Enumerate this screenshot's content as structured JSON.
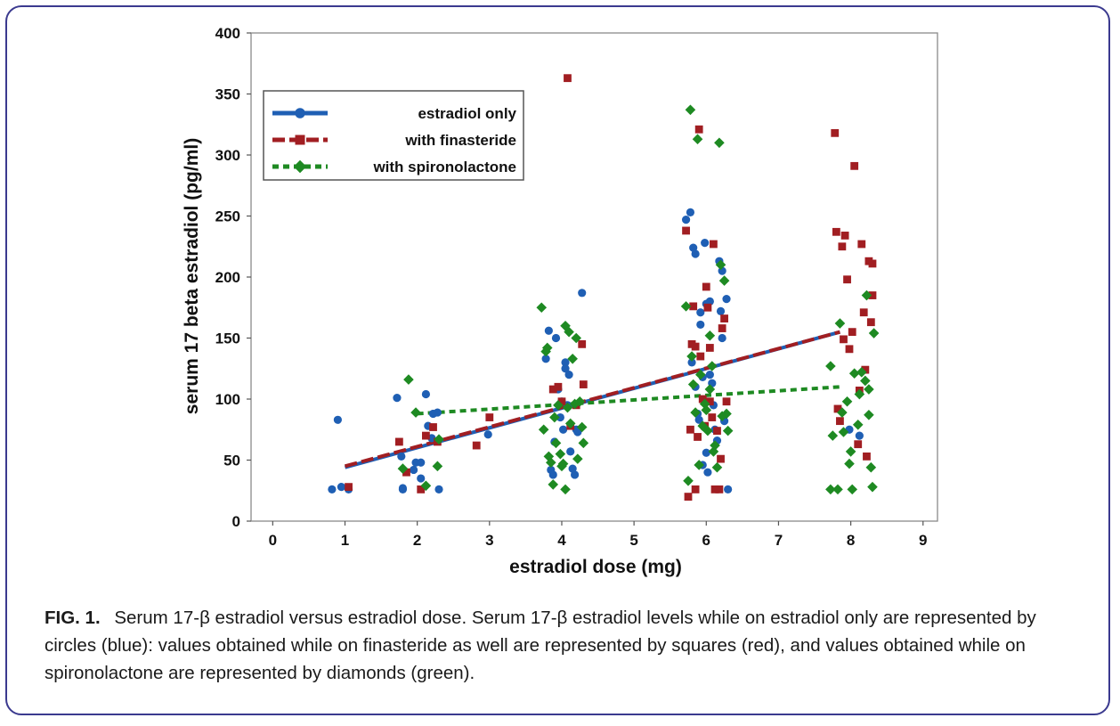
{
  "chart_data": {
    "type": "scatter",
    "xlabel": "estradiol dose (mg)",
    "ylabel": "serum 17 beta estradiol (pg/ml)",
    "xlim": [
      -0.3,
      9.2
    ],
    "ylim": [
      0,
      400
    ],
    "xticks": [
      0,
      1,
      2,
      3,
      4,
      5,
      6,
      7,
      8,
      9
    ],
    "yticks": [
      0,
      50,
      100,
      150,
      200,
      250,
      300,
      350,
      400
    ],
    "grid": false,
    "legend_position": "top-left",
    "series": [
      {
        "name": "estradiol only",
        "marker": "circle",
        "line_style": "solid",
        "color": "#1f5fb4",
        "fit_line": [
          [
            1.0,
            44
          ],
          [
            7.85,
            155
          ]
        ],
        "points": [
          [
            0.82,
            26
          ],
          [
            0.9,
            83
          ],
          [
            0.95,
            28
          ],
          [
            1.05,
            26
          ],
          [
            1.72,
            101
          ],
          [
            1.78,
            53
          ],
          [
            1.8,
            27
          ],
          [
            1.8,
            26
          ],
          [
            1.95,
            42
          ],
          [
            1.98,
            48
          ],
          [
            2.05,
            35
          ],
          [
            2.05,
            48
          ],
          [
            2.12,
            104
          ],
          [
            2.15,
            78
          ],
          [
            2.2,
            68
          ],
          [
            2.22,
            88
          ],
          [
            2.28,
            89
          ],
          [
            2.3,
            26
          ],
          [
            2.98,
            71
          ],
          [
            3.78,
            133
          ],
          [
            3.82,
            156
          ],
          [
            3.85,
            42
          ],
          [
            3.88,
            38
          ],
          [
            3.9,
            65
          ],
          [
            3.92,
            150
          ],
          [
            3.95,
            108
          ],
          [
            3.98,
            85
          ],
          [
            4.0,
            98
          ],
          [
            4.02,
            75
          ],
          [
            4.05,
            130
          ],
          [
            4.05,
            125
          ],
          [
            4.08,
            95
          ],
          [
            4.1,
            120
          ],
          [
            4.12,
            57
          ],
          [
            4.15,
            43
          ],
          [
            4.18,
            38
          ],
          [
            4.2,
            75
          ],
          [
            4.22,
            73
          ],
          [
            4.28,
            187
          ],
          [
            5.72,
            247
          ],
          [
            5.78,
            253
          ],
          [
            5.8,
            130
          ],
          [
            5.82,
            224
          ],
          [
            5.85,
            219
          ],
          [
            5.85,
            110
          ],
          [
            5.88,
            88
          ],
          [
            5.9,
            83
          ],
          [
            5.92,
            171
          ],
          [
            5.92,
            161
          ],
          [
            5.95,
            118
          ],
          [
            5.95,
            46
          ],
          [
            5.98,
            228
          ],
          [
            6.0,
            178
          ],
          [
            6.0,
            56
          ],
          [
            6.02,
            40
          ],
          [
            6.05,
            180
          ],
          [
            6.05,
            120
          ],
          [
            6.08,
            113
          ],
          [
            6.1,
            95
          ],
          [
            6.12,
            75
          ],
          [
            6.15,
            66
          ],
          [
            6.18,
            213
          ],
          [
            6.2,
            172
          ],
          [
            6.22,
            150
          ],
          [
            6.22,
            205
          ],
          [
            6.25,
            82
          ],
          [
            6.28,
            182
          ],
          [
            6.3,
            26
          ],
          [
            7.98,
            75
          ],
          [
            8.12,
            70
          ]
        ]
      },
      {
        "name": "with finasteride",
        "marker": "square",
        "line_style": "long-dash",
        "color": "#a11e22",
        "fit_line": [
          [
            1.0,
            45
          ],
          [
            7.85,
            155
          ]
        ],
        "points": [
          [
            1.05,
            28
          ],
          [
            1.75,
            65
          ],
          [
            1.85,
            40
          ],
          [
            2.05,
            26
          ],
          [
            2.12,
            70
          ],
          [
            2.22,
            77
          ],
          [
            2.28,
            65
          ],
          [
            2.82,
            62
          ],
          [
            3.0,
            85
          ],
          [
            3.88,
            108
          ],
          [
            3.95,
            110
          ],
          [
            4.0,
            98
          ],
          [
            4.08,
            363
          ],
          [
            4.12,
            78
          ],
          [
            4.2,
            95
          ],
          [
            4.28,
            145
          ],
          [
            4.3,
            112
          ],
          [
            5.72,
            238
          ],
          [
            5.75,
            20
          ],
          [
            5.78,
            75
          ],
          [
            5.8,
            145
          ],
          [
            5.82,
            176
          ],
          [
            5.85,
            143
          ],
          [
            5.85,
            26
          ],
          [
            5.88,
            69
          ],
          [
            5.9,
            321
          ],
          [
            5.92,
            135
          ],
          [
            5.95,
            100
          ],
          [
            5.98,
            78
          ],
          [
            6.0,
            192
          ],
          [
            6.02,
            175
          ],
          [
            6.05,
            142
          ],
          [
            6.05,
            98
          ],
          [
            6.08,
            85
          ],
          [
            6.1,
            227
          ],
          [
            6.12,
            26
          ],
          [
            6.15,
            74
          ],
          [
            6.18,
            26
          ],
          [
            6.2,
            51
          ],
          [
            6.22,
            158
          ],
          [
            6.25,
            166
          ],
          [
            6.28,
            98
          ],
          [
            7.78,
            318
          ],
          [
            7.8,
            237
          ],
          [
            7.82,
            92
          ],
          [
            7.85,
            82
          ],
          [
            7.88,
            225
          ],
          [
            7.9,
            149
          ],
          [
            7.92,
            234
          ],
          [
            7.95,
            198
          ],
          [
            7.98,
            141
          ],
          [
            8.02,
            155
          ],
          [
            8.05,
            291
          ],
          [
            8.1,
            63
          ],
          [
            8.12,
            107
          ],
          [
            8.15,
            227
          ],
          [
            8.18,
            171
          ],
          [
            8.2,
            124
          ],
          [
            8.22,
            53
          ],
          [
            8.25,
            213
          ],
          [
            8.28,
            163
          ],
          [
            8.3,
            211
          ],
          [
            8.3,
            185
          ]
        ]
      },
      {
        "name": "with spironolactone",
        "marker": "diamond",
        "line_style": "dashed",
        "color": "#1e8a22",
        "fit_line": [
          [
            2.0,
            88
          ],
          [
            7.85,
            110
          ]
        ],
        "points": [
          [
            1.8,
            43
          ],
          [
            1.88,
            116
          ],
          [
            1.98,
            89
          ],
          [
            2.12,
            29
          ],
          [
            2.28,
            45
          ],
          [
            2.3,
            67
          ],
          [
            3.72,
            175
          ],
          [
            3.75,
            75
          ],
          [
            3.78,
            139
          ],
          [
            3.8,
            142
          ],
          [
            3.82,
            53
          ],
          [
            3.85,
            48
          ],
          [
            3.88,
            30
          ],
          [
            3.9,
            85
          ],
          [
            3.92,
            64
          ],
          [
            3.95,
            95
          ],
          [
            3.98,
            55
          ],
          [
            4.0,
            45
          ],
          [
            4.02,
            47
          ],
          [
            4.05,
            160
          ],
          [
            4.05,
            26
          ],
          [
            4.08,
            93
          ],
          [
            4.1,
            155
          ],
          [
            4.12,
            80
          ],
          [
            4.15,
            133
          ],
          [
            4.18,
            96
          ],
          [
            4.2,
            150
          ],
          [
            4.22,
            51
          ],
          [
            4.25,
            98
          ],
          [
            4.28,
            77
          ],
          [
            4.3,
            64
          ],
          [
            5.72,
            176
          ],
          [
            5.75,
            33
          ],
          [
            5.78,
            337
          ],
          [
            5.8,
            135
          ],
          [
            5.82,
            112
          ],
          [
            5.85,
            89
          ],
          [
            5.88,
            313
          ],
          [
            5.9,
            46
          ],
          [
            5.92,
            120
          ],
          [
            5.95,
            78
          ],
          [
            5.98,
            96
          ],
          [
            6.0,
            91
          ],
          [
            6.02,
            74
          ],
          [
            6.05,
            152
          ],
          [
            6.05,
            108
          ],
          [
            6.08,
            127
          ],
          [
            6.1,
            57
          ],
          [
            6.12,
            62
          ],
          [
            6.15,
            44
          ],
          [
            6.18,
            310
          ],
          [
            6.2,
            210
          ],
          [
            6.22,
            86
          ],
          [
            6.25,
            197
          ],
          [
            6.28,
            88
          ],
          [
            6.3,
            74
          ],
          [
            7.72,
            127
          ],
          [
            7.72,
            26
          ],
          [
            7.75,
            70
          ],
          [
            7.82,
            26
          ],
          [
            7.85,
            162
          ],
          [
            7.88,
            89
          ],
          [
            7.9,
            73
          ],
          [
            7.95,
            98
          ],
          [
            7.98,
            47
          ],
          [
            8.0,
            57
          ],
          [
            8.02,
            26
          ],
          [
            8.05,
            121
          ],
          [
            8.1,
            79
          ],
          [
            8.12,
            104
          ],
          [
            8.15,
            122
          ],
          [
            8.2,
            115
          ],
          [
            8.22,
            185
          ],
          [
            8.25,
            87
          ],
          [
            8.25,
            108
          ],
          [
            8.28,
            44
          ],
          [
            8.3,
            28
          ],
          [
            8.32,
            154
          ]
        ]
      }
    ]
  },
  "caption": {
    "label": "FIG. 1.",
    "text": "Serum 17-β estradiol versus estradiol dose. Serum 17-β estradiol levels while on estradiol only are represented by circles (blue): values obtained while on finasteride as well are represented by squares (red), and values obtained while on spironolactone are represented by diamonds (green)."
  }
}
